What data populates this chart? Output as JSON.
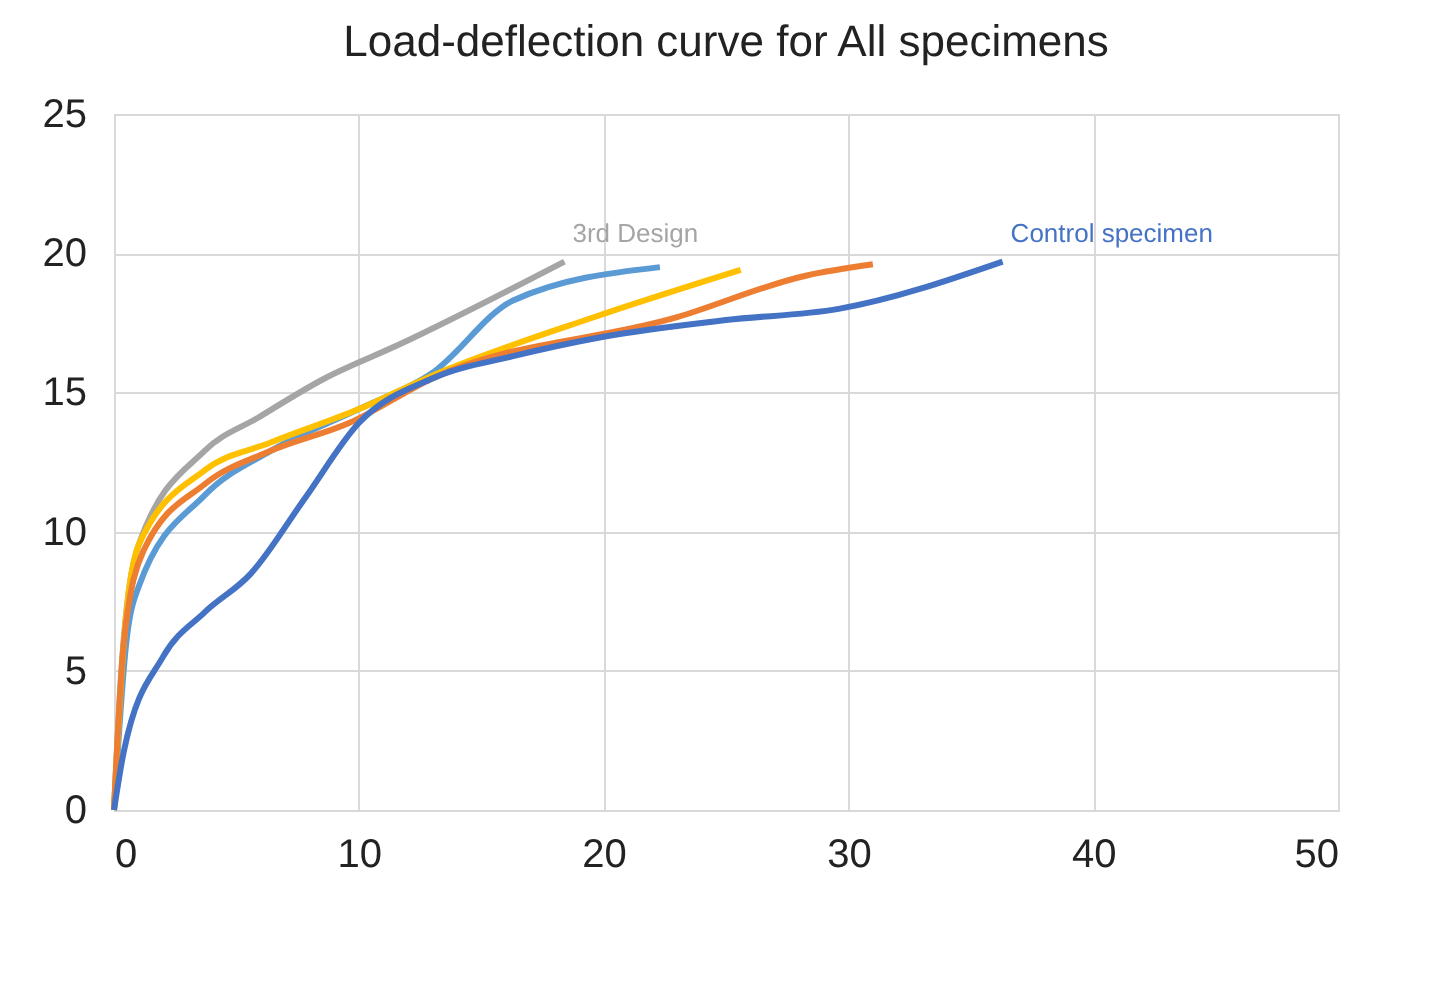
{
  "chart_data": {
    "type": "line",
    "title": "Load-deflection curve for All specimens",
    "xlim": [
      0,
      50
    ],
    "xticks": [
      0,
      10,
      20,
      30,
      40,
      50
    ],
    "ylim": [
      0,
      25
    ],
    "yticks": [
      0,
      5,
      10,
      15,
      20,
      25
    ],
    "grid": true,
    "legend": false,
    "series": [
      {
        "name": "3rd Design",
        "color": "#a5a5a5",
        "x": [
          0,
          0.3,
          1,
          3.7,
          5.9,
          8.6,
          11.6,
          18.4
        ],
        "values": [
          0,
          5,
          9.5,
          12.9,
          14.1,
          15.5,
          16.7,
          19.7
        ]
      },
      {
        "color": "#5b9bd5",
        "x": [
          0,
          0.5,
          1,
          3.7,
          6.4,
          10,
          13,
          16.3,
          22.3
        ],
        "values": [
          0,
          6,
          8,
          11.3,
          12.9,
          14.4,
          15.7,
          18.3,
          19.5
        ]
      },
      {
        "color": "#ffc000",
        "x": [
          0,
          0.4,
          1,
          3.7,
          6.4,
          10,
          13,
          19.6,
          25.6
        ],
        "values": [
          0,
          6,
          9.5,
          12.2,
          13.2,
          14.4,
          15.6,
          17.7,
          19.4
        ]
      },
      {
        "color": "#ed7d31",
        "x": [
          0,
          0.4,
          1.2,
          3.7,
          6.4,
          9.6,
          13,
          23,
          28.3,
          31
        ],
        "values": [
          0,
          6,
          9.3,
          11.7,
          12.9,
          13.9,
          15.5,
          17.7,
          19.2,
          19.6
        ]
      },
      {
        "name": "Control specimen",
        "color": "#4472c4",
        "x": [
          0,
          0.4,
          2,
          3.7,
          5.6,
          7.8,
          10,
          13,
          16.3,
          20,
          25,
          29.6,
          36.3
        ],
        "values": [
          0,
          2.1,
          5.5,
          7.1,
          8.5,
          11.2,
          13.9,
          15.5,
          16.3,
          17,
          17.6,
          18,
          19.7
        ]
      }
    ]
  }
}
